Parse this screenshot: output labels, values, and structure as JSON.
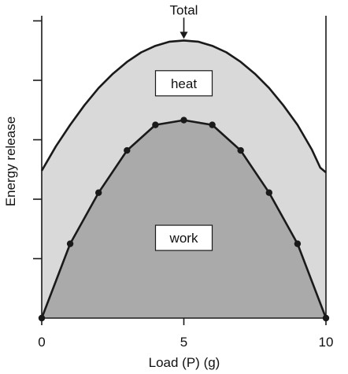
{
  "chart_data": {
    "type": "area",
    "xlabel": "Load (P)  (g)",
    "ylabel": "Energy release",
    "xlim": [
      0,
      10
    ],
    "ylim": [
      0,
      5.2
    ],
    "x_ticks": [
      0,
      5,
      10
    ],
    "x_tick_labels": [
      "0",
      "5",
      "10"
    ],
    "y_ticks": [
      0,
      1,
      2,
      3,
      4,
      5
    ],
    "grid": false,
    "series": [
      {
        "name": "Total",
        "x": [
          0,
          0.5,
          1,
          1.5,
          2,
          2.5,
          3,
          3.5,
          4,
          4.5,
          5,
          5.5,
          6,
          6.5,
          7,
          7.5,
          8,
          8.5,
          9,
          9.5,
          9.8,
          10
        ],
        "y": [
          2.48,
          2.89,
          3.25,
          3.58,
          3.87,
          4.11,
          4.31,
          4.47,
          4.58,
          4.65,
          4.67,
          4.65,
          4.58,
          4.47,
          4.31,
          4.11,
          3.87,
          3.58,
          3.25,
          2.84,
          2.53,
          2.45
        ],
        "fill": "#d9d9d9",
        "markers": false
      },
      {
        "name": "work",
        "x": [
          0,
          1,
          2,
          3,
          4,
          5,
          6,
          7,
          8,
          9,
          10
        ],
        "y": [
          0,
          1.25,
          2.11,
          2.82,
          3.25,
          3.33,
          3.25,
          2.82,
          2.11,
          1.25,
          0
        ],
        "fill": "#aaaaaa",
        "markers": true
      }
    ],
    "annotations": [
      {
        "text": "Total",
        "x": 5,
        "y": 4.67,
        "style": "arrow"
      },
      {
        "text": "heat",
        "x": 5,
        "y": 3.95,
        "style": "box"
      },
      {
        "text": "work",
        "x": 5,
        "y": 1.35,
        "style": "box"
      }
    ],
    "colors": {
      "line": "#1a1a1a",
      "heat_fill": "#d9d9d9",
      "work_fill": "#aaaaaa"
    }
  }
}
